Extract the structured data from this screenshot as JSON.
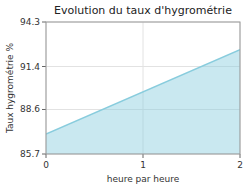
{
  "chart_data": {
    "type": "area",
    "title": "Evolution du taux d'hygrométrie",
    "x_label": "heure par heure",
    "y_label": "Taux hygrométrie %",
    "x": [
      0,
      2
    ],
    "values": [
      87.0,
      92.5
    ],
    "color": "#88ccdd",
    "xlim": [
      0,
      2
    ],
    "ylim": [
      85.7,
      94.3
    ],
    "xticks": [
      0,
      1,
      2
    ],
    "yticks": [
      85.7,
      88.6,
      91.4,
      94.3
    ],
    "grid": true
  }
}
